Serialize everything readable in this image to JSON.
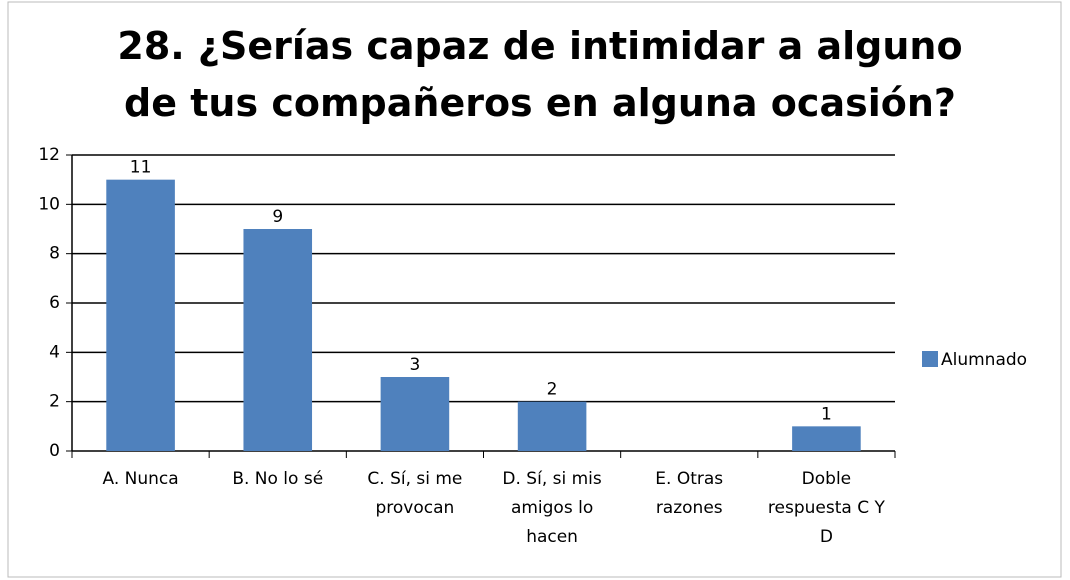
{
  "chart_data": {
    "type": "bar",
    "title": "28. ¿Serías capaz de intimidar a alguno de tus compañeros en alguna ocasión?",
    "categories": [
      "A. Nunca",
      "B. No lo sé",
      "C. Sí, si me provocan",
      "D. Sí, si mis amigos lo hacen",
      "E. Otras razones",
      "Doble respuesta C Y D"
    ],
    "series": [
      {
        "name": "Alumnado",
        "color": "#4f81bd",
        "values": [
          11,
          9,
          3,
          2,
          0,
          1
        ]
      }
    ],
    "ylim": [
      0,
      12
    ],
    "yticks": [
      0,
      2,
      4,
      6,
      8,
      10,
      12
    ],
    "grid": true,
    "legend": "right"
  }
}
